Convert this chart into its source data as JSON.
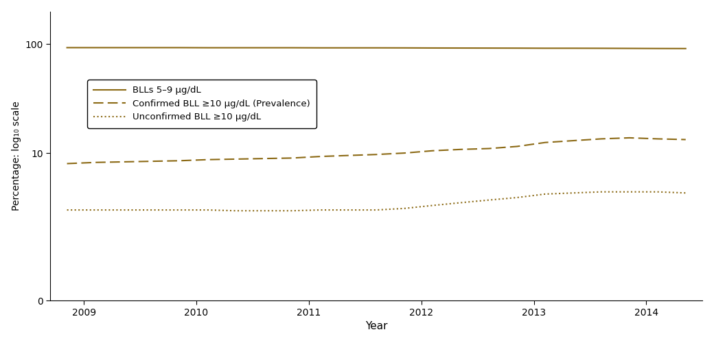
{
  "years": [
    2008.85,
    2009.1,
    2009.35,
    2009.6,
    2009.85,
    2010.1,
    2010.35,
    2010.6,
    2010.85,
    2011.1,
    2011.35,
    2011.6,
    2011.85,
    2012.1,
    2012.35,
    2012.6,
    2012.85,
    2013.1,
    2013.35,
    2013.6,
    2013.85,
    2014.1,
    2014.35
  ],
  "bll_5_9": [
    93.0,
    93.0,
    93.0,
    93.0,
    93.0,
    92.8,
    92.8,
    92.8,
    92.8,
    92.6,
    92.6,
    92.6,
    92.5,
    92.3,
    92.2,
    92.1,
    92.0,
    91.8,
    91.8,
    91.7,
    91.5,
    91.3,
    91.2
  ],
  "confirmed_bll_10": [
    8.0,
    8.2,
    8.3,
    8.4,
    8.5,
    8.7,
    8.8,
    8.9,
    9.0,
    9.3,
    9.5,
    9.7,
    10.0,
    10.5,
    10.8,
    11.0,
    11.5,
    12.5,
    13.0,
    13.5,
    13.8,
    13.5,
    13.3
  ],
  "unconfirmed_bll_10": [
    3.0,
    3.0,
    3.0,
    3.0,
    3.0,
    3.0,
    2.95,
    2.95,
    2.95,
    3.0,
    3.0,
    3.0,
    3.1,
    3.3,
    3.5,
    3.7,
    3.9,
    4.2,
    4.3,
    4.4,
    4.4,
    4.4,
    4.3
  ],
  "line_color": "#8B6914",
  "ylabel": "Percentage: log₁₀ scale",
  "xlabel": "Year",
  "legend_labels": [
    "BLLs 5–9 μg/dL",
    "Confirmed BLL ≥10 μg/dL (Prevalence)",
    "Unconfirmed BLL ≥10 μg/dL"
  ],
  "yticks": [
    0,
    10,
    100
  ],
  "ytick_labels": [
    "0",
    "10",
    "100"
  ],
  "xticks": [
    2009,
    2010,
    2011,
    2012,
    2013,
    2014
  ],
  "xlim": [
    2008.7,
    2014.5
  ],
  "figsize": [
    10.4,
    5.0
  ],
  "dpi": 100
}
